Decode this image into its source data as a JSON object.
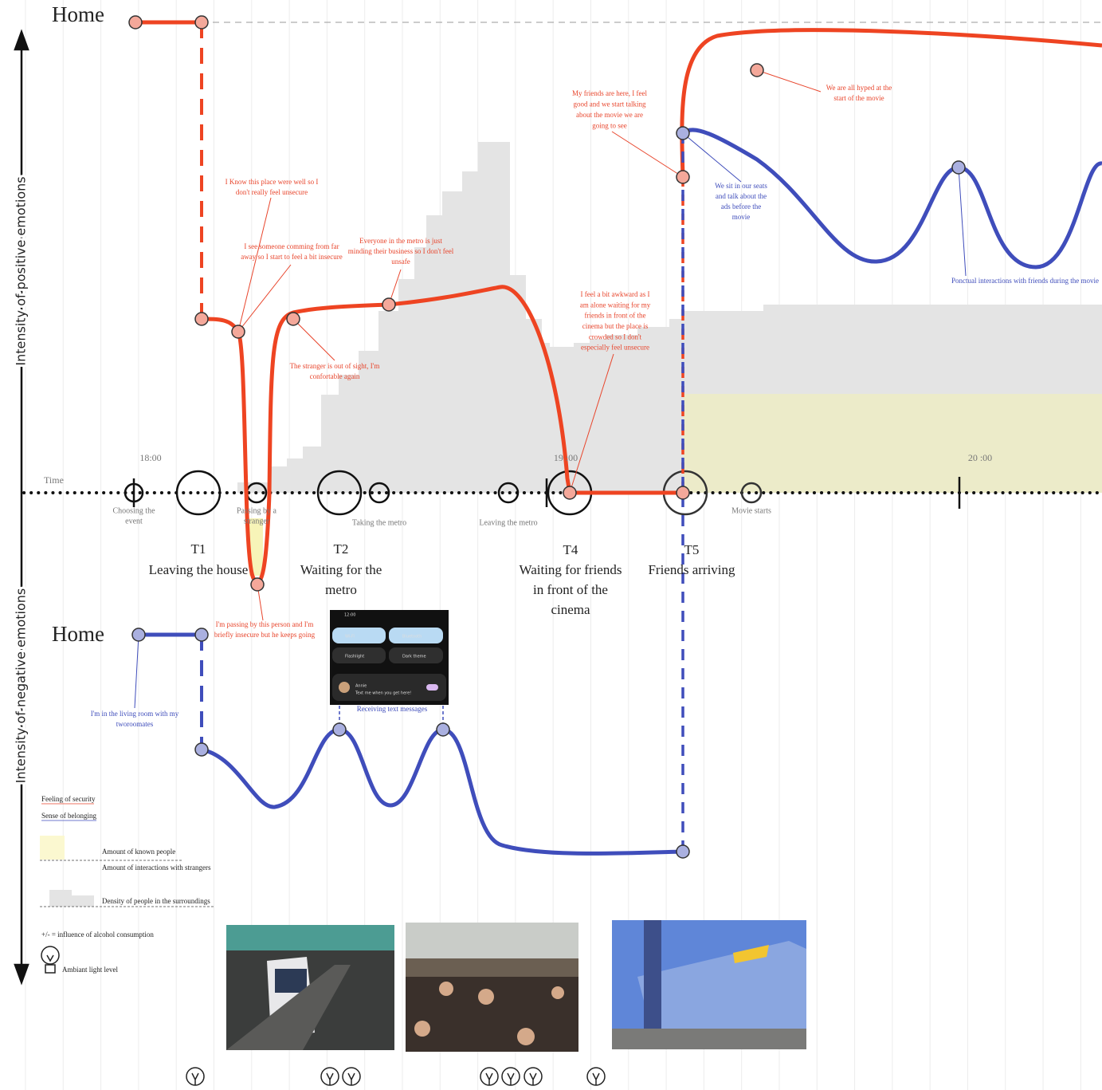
{
  "home": [
    "Home",
    "Home"
  ],
  "axis_labels": {
    "positive": "Intensity of positive emotions",
    "negative": "Intensity of negative emotions",
    "time": "Time"
  },
  "time_ticks": [
    "18:00",
    "19 :00",
    "20 :00"
  ],
  "events": [
    [
      "Choosing the",
      "event"
    ],
    [
      "Passing by a",
      "stranger"
    ],
    [
      "Taking the metro"
    ],
    [
      "Leaving the metro"
    ],
    [
      "Movie starts"
    ]
  ],
  "phases": [
    {
      "id": "T1",
      "name": [
        "Leaving the house"
      ]
    },
    {
      "id": "T2",
      "name": [
        "Waiting for the",
        "metro"
      ]
    },
    {
      "id": "T4",
      "name": [
        "Waiting for friends",
        "in front of the",
        "cinema"
      ]
    },
    {
      "id": "T5",
      "name": [
        "Friends arriving"
      ]
    }
  ],
  "security_notes": [
    [
      "I Know this place were well so I",
      "don't really feel unsecure"
    ],
    [
      "I see someone comming from far",
      "away so I start to feel a bit insecure"
    ],
    [
      "Everyone in the metro is just",
      "minding their business so I don't feel",
      "unsafe"
    ],
    [
      "The stranger is out of sight, I'm",
      "confortable again"
    ],
    [
      "I feel a bit awkward as I",
      "am alone waiting for my",
      "friends in front of the",
      "cinema but the place is",
      "crowded so I don't",
      "especially feel unsecure"
    ],
    [
      "My friends are here, I feel",
      "good and we start talking",
      "about the movie we are",
      "going to see"
    ],
    [
      "We are all hyped at the",
      "start of the movie"
    ],
    [
      "I'm passing by this person and I'm",
      "briefly insecure but he keeps going"
    ]
  ],
  "belonging_notes": [
    [
      "We sit in our seats",
      "and talk about the",
      "ads before the",
      "movie"
    ],
    [
      "Ponctual interactions with friends during the movie"
    ],
    [
      "I'm in the living room with my",
      "tworoomates"
    ],
    [
      "Receiving text messages"
    ]
  ],
  "phone": {
    "time": "12:00",
    "tiles": [
      "Wi-Fi",
      "Bluetooth",
      "Flashlight",
      "Dark theme"
    ],
    "contact": "Annie",
    "message": "Text me when you get here!"
  },
  "legend": {
    "security": "Feeling of security",
    "belonging": "Sense of belonging",
    "known_people": "Amount of known people",
    "interactions": "Amount of interactions with strangers",
    "density": "Density of people in the surroundings",
    "alcohol": "+/- = influence of alcohol consumption",
    "light": "Ambiant light level"
  }
}
